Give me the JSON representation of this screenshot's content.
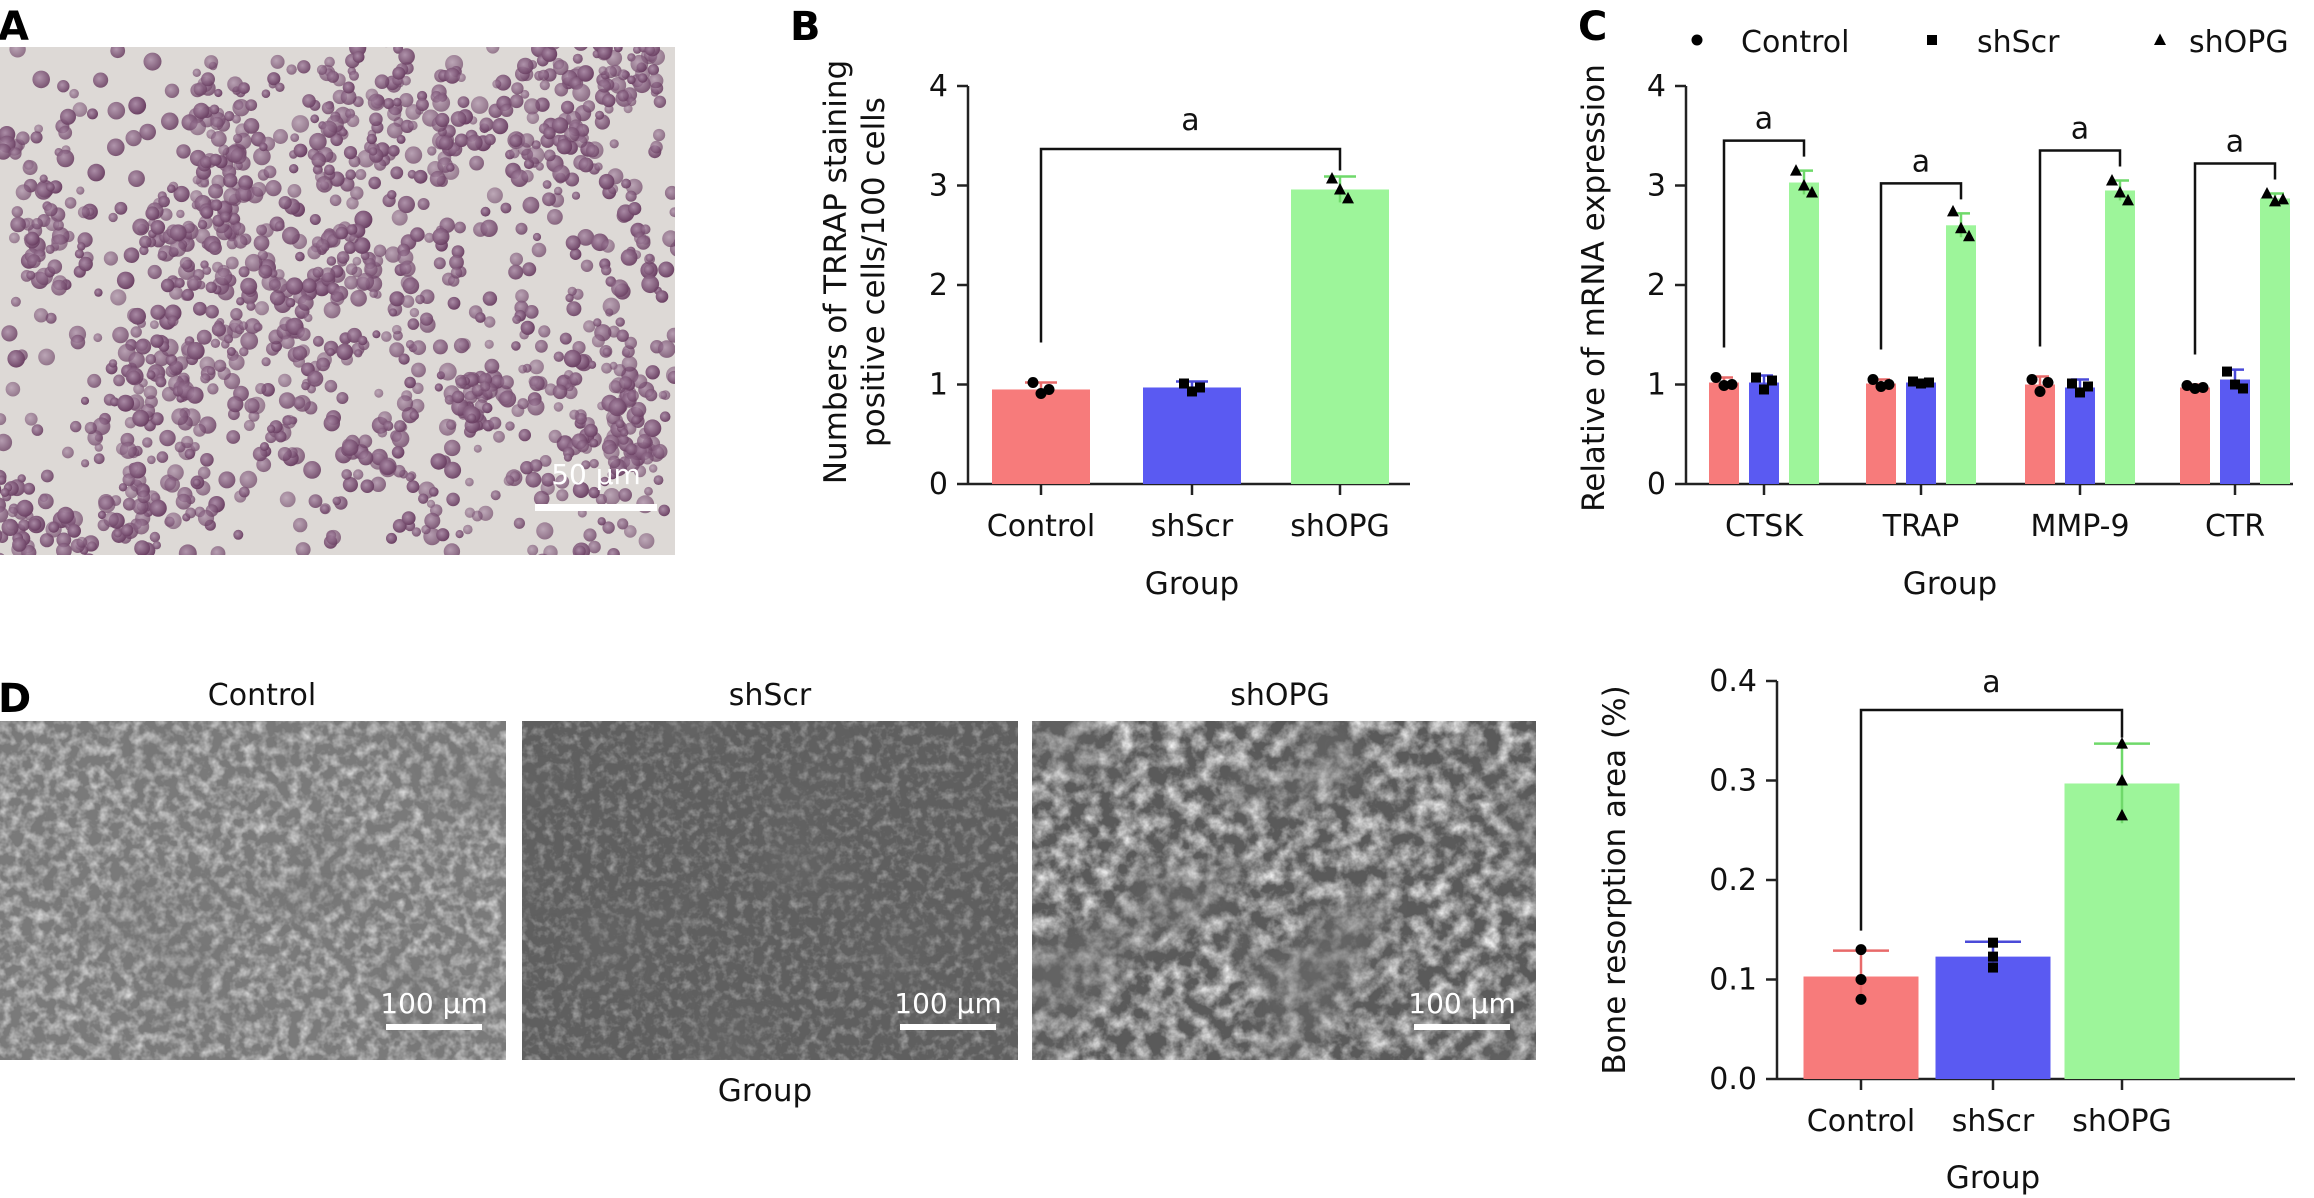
{
  "panels": {
    "A": {
      "label": "A",
      "scalebar": "50 µm"
    },
    "B": {
      "label": "B"
    },
    "C": {
      "label": "C"
    },
    "D": {
      "label": "D",
      "image_titles": [
        "Control",
        "shScr",
        "shOPG"
      ],
      "scalebars": [
        "100 µm",
        "100 µm",
        "100 µm"
      ],
      "group_label": "Group"
    }
  },
  "colors": {
    "control": "#f77b7b",
    "shscr": "#5a5af2",
    "shopg": "#9df59a",
    "control_err": "#e86a6a",
    "shscr_err": "#4a4ad8",
    "shopg_err": "#6fd96a"
  },
  "chart_data": [
    {
      "id": "B",
      "type": "bar",
      "categories": [
        "Control",
        "shScr",
        "shOPG"
      ],
      "values": [
        0.95,
        0.97,
        2.96
      ],
      "errors": [
        0.07,
        0.06,
        0.13
      ],
      "points": [
        [
          1.02,
          0.91,
          0.95
        ],
        [
          1.01,
          0.93,
          0.97
        ],
        [
          3.07,
          2.96,
          2.87
        ]
      ],
      "markers": [
        "circle",
        "square",
        "triangle"
      ],
      "xlabel": "Group",
      "ylabel": [
        "Numbers of TRRAP staining",
        "positive cells/100 cells"
      ],
      "ylim": [
        0,
        4
      ],
      "yticks": [
        0,
        1,
        2,
        3,
        4
      ],
      "significance": [
        {
          "from": 0,
          "to": 2,
          "label": "a"
        }
      ]
    },
    {
      "id": "C",
      "type": "bar",
      "categories": [
        "CTSK",
        "TRAP",
        "MMP-9",
        "CTR"
      ],
      "series": [
        {
          "name": "Control",
          "marker": "circle",
          "values": [
            1.02,
            1.01,
            1.0,
            0.97
          ],
          "errors": [
            0.05,
            0.04,
            0.08,
            0.03
          ],
          "points": [
            [
              1.07,
              0.99,
              1.0
            ],
            [
              1.05,
              0.98,
              1.0
            ],
            [
              1.05,
              0.93,
              1.02
            ],
            [
              0.99,
              0.96,
              0.97
            ]
          ]
        },
        {
          "name": "shScr",
          "marker": "square",
          "values": [
            1.02,
            1.02,
            0.97,
            1.05
          ],
          "errors": [
            0.07,
            0.02,
            0.08,
            0.1
          ],
          "points": [
            [
              1.07,
              0.95,
              1.04
            ],
            [
              1.03,
              1.01,
              1.02
            ],
            [
              1.01,
              0.92,
              0.98
            ],
            [
              1.13,
              1.0,
              0.96
            ]
          ]
        },
        {
          "name": "shOPG",
          "marker": "triangle",
          "values": [
            3.03,
            2.6,
            2.95,
            2.87
          ],
          "errors": [
            0.12,
            0.12,
            0.1,
            0.05
          ],
          "points": [
            [
              3.15,
              3.0,
              2.93
            ],
            [
              2.74,
              2.57,
              2.49
            ],
            [
              3.05,
              2.93,
              2.85
            ],
            [
              2.92,
              2.84,
              2.86
            ]
          ]
        }
      ],
      "legend": [
        "Control",
        "shScr",
        "shOPG"
      ],
      "legend_position": "top",
      "xlabel": "Group",
      "ylabel": "Relative of mRNA expression",
      "ylim": [
        0,
        4
      ],
      "yticks": [
        0,
        1,
        2,
        3,
        4
      ],
      "significance": [
        {
          "category": 0,
          "label": "a"
        },
        {
          "category": 1,
          "label": "a"
        },
        {
          "category": 2,
          "label": "a"
        },
        {
          "category": 3,
          "label": "a"
        }
      ]
    },
    {
      "id": "D",
      "type": "bar",
      "categories": [
        "Control",
        "shScr",
        "shOPG"
      ],
      "values": [
        0.103,
        0.123,
        0.297
      ],
      "errors": [
        0.026,
        0.015,
        0.04
      ],
      "points": [
        [
          0.13,
          0.1,
          0.08
        ],
        [
          0.137,
          0.123,
          0.112
        ],
        [
          0.337,
          0.3,
          0.265
        ]
      ],
      "markers": [
        "circle",
        "square",
        "triangle"
      ],
      "xlabel": "Group",
      "ylabel": "Bone resorption area (%)",
      "ylim": [
        0,
        0.4
      ],
      "yticks": [
        "0.0",
        "0.1",
        "0.2",
        "0.3",
        "0.4"
      ],
      "significance": [
        {
          "from": 0,
          "to": 2,
          "label": "a"
        }
      ]
    }
  ]
}
